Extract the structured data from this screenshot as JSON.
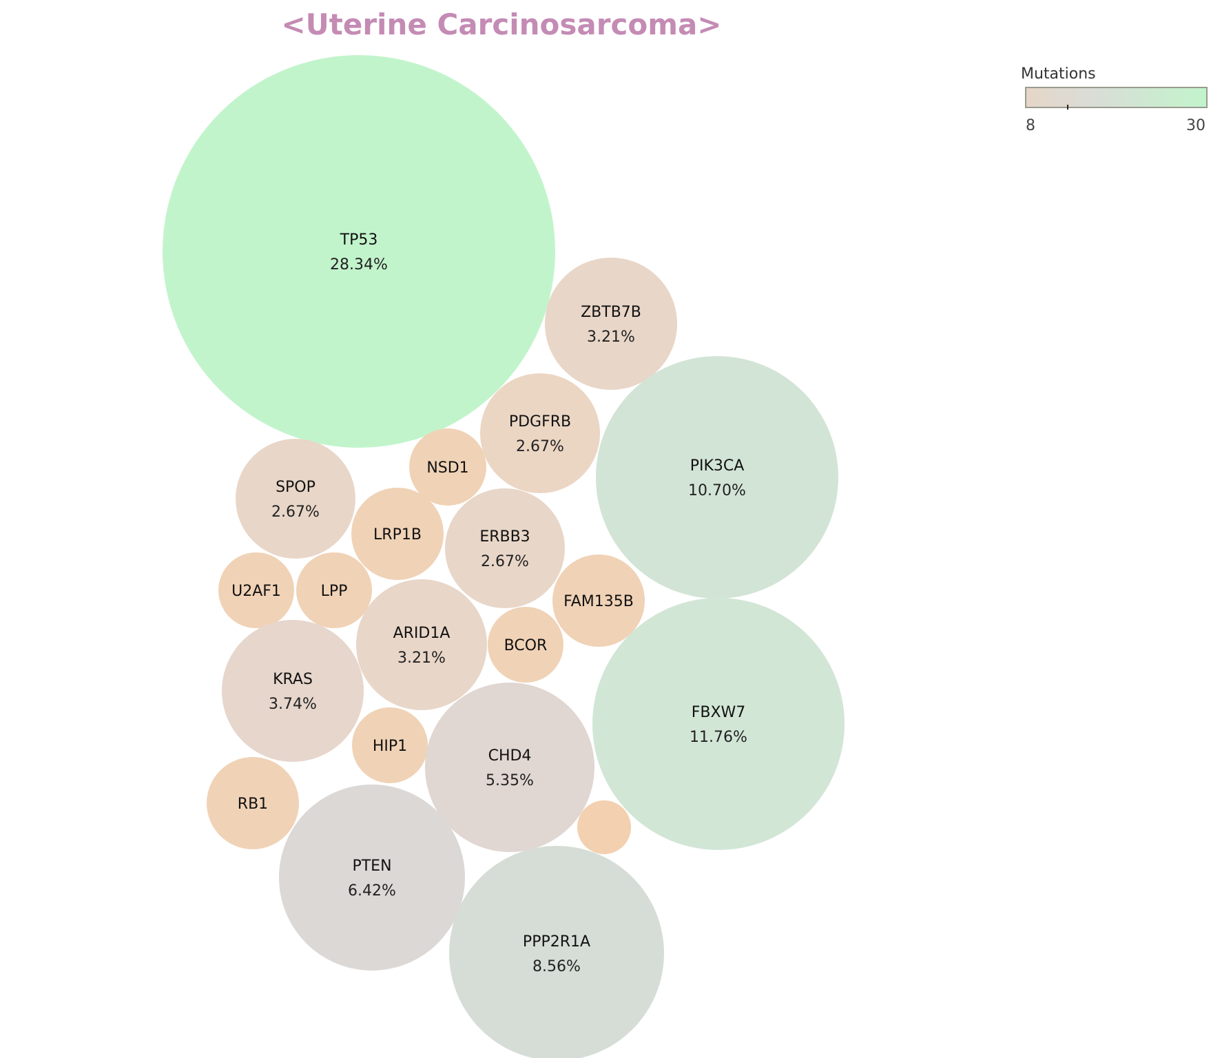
{
  "chart_data": {
    "type": "bubble",
    "title": "<Uterine Carcinosarcoma>",
    "title_color": "#c48bb4",
    "legend": {
      "title": "Mutations",
      "min_label": "8",
      "max_label": "30",
      "min": 8,
      "max": 30,
      "gradient_colors": [
        "#e6d6c8",
        "#dadcd6",
        "#c2f4cc"
      ],
      "placement": "top-right"
    },
    "bubbles": [
      {
        "gene": "TP53",
        "percent": "28.34%",
        "value": 28.34,
        "color": "#c2f4cc"
      },
      {
        "gene": "ZBTB7B",
        "percent": "3.21%",
        "value": 3.21,
        "color": "#e8d6c8"
      },
      {
        "gene": "PDGFRB",
        "percent": "2.67%",
        "value": 2.67,
        "color": "#ebd6c4"
      },
      {
        "gene": "NSD1",
        "percent": "",
        "value": 2.14,
        "color": "#f0d2b6"
      },
      {
        "gene": "PIK3CA",
        "percent": "10.70%",
        "value": 10.7,
        "color": "#d2e4d6"
      },
      {
        "gene": "SPOP",
        "percent": "2.67%",
        "value": 2.67,
        "color": "#e8d6c8"
      },
      {
        "gene": "LRP1B",
        "percent": "",
        "value": 2.14,
        "color": "#f0d2b6"
      },
      {
        "gene": "ERBB3",
        "percent": "2.67%",
        "value": 2.67,
        "color": "#e8d6c8"
      },
      {
        "gene": "U2AF1",
        "percent": "",
        "value": 1.6,
        "color": "#f0d2b6"
      },
      {
        "gene": "LPP",
        "percent": "",
        "value": 1.6,
        "color": "#f0d2b6"
      },
      {
        "gene": "FAM135B",
        "percent": "",
        "value": 2.14,
        "color": "#f0d2b6"
      },
      {
        "gene": "ARID1A",
        "percent": "3.21%",
        "value": 3.21,
        "color": "#e8d6c8"
      },
      {
        "gene": "BCOR",
        "percent": "",
        "value": 1.6,
        "color": "#f0d2b6"
      },
      {
        "gene": "KRAS",
        "percent": "3.74%",
        "value": 3.74,
        "color": "#e6d6cc"
      },
      {
        "gene": "FBXW7",
        "percent": "11.76%",
        "value": 11.76,
        "color": "#d2e6d6"
      },
      {
        "gene": "HIP1",
        "percent": "",
        "value": 1.6,
        "color": "#f0d2b6"
      },
      {
        "gene": "CHD4",
        "percent": "5.35%",
        "value": 5.35,
        "color": "#e0d6d2"
      },
      {
        "gene": "RB1",
        "percent": "",
        "value": 2.14,
        "color": "#f0d2b6"
      },
      {
        "gene": "",
        "percent": "",
        "value": 0.8,
        "color": "#f2d0b0"
      },
      {
        "gene": "PTEN",
        "percent": "6.42%",
        "value": 6.42,
        "color": "#dcd8d6"
      },
      {
        "gene": "PPP2R1A",
        "percent": "8.56%",
        "value": 8.56,
        "color": "#d6ddd6"
      }
    ]
  }
}
